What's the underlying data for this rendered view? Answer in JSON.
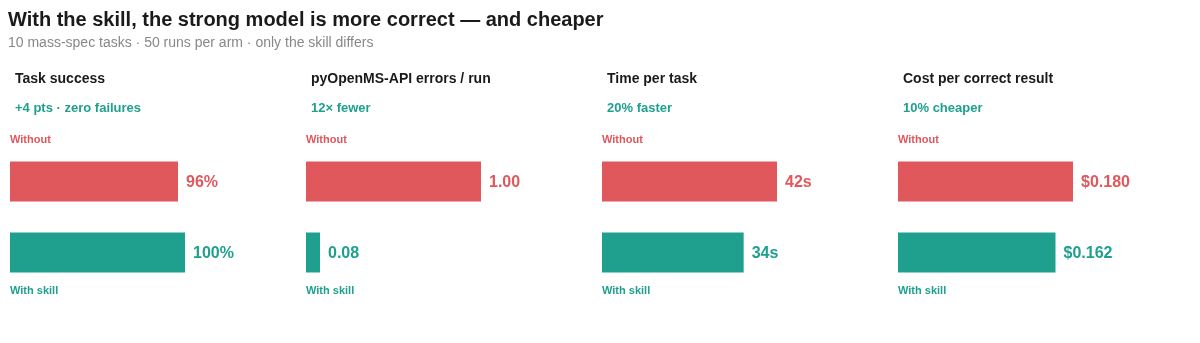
{
  "chart_data": [
    {
      "type": "bar",
      "orientation": "horizontal",
      "title": "Task success",
      "subtitle": "+4 pts · zero failures",
      "annotations": [
        "With the skill, the strong model is more correct — and cheaper",
        "10 mass-spec tasks · 50 runs per arm · only the skill differs"
      ],
      "categories": [
        "Without",
        "With skill"
      ],
      "values": [
        96,
        100
      ],
      "colors": [
        "#e0585c",
        "#1fa08f"
      ],
      "value_labels": [
        "96%",
        "100%"
      ]
    },
    {
      "type": "bar",
      "orientation": "horizontal",
      "title": "pyOpenMS-API errors / run",
      "subtitle": "12× fewer",
      "categories": [
        "Without",
        "With skill"
      ],
      "values": [
        1.0,
        0.08
      ],
      "colors": [
        "#e0585c",
        "#1fa08f"
      ],
      "value_labels": [
        "1.00",
        "0.08"
      ]
    },
    {
      "type": "bar",
      "orientation": "horizontal",
      "title": "Time per task",
      "subtitle": "20% faster",
      "categories": [
        "Without",
        "With skill"
      ],
      "values": [
        42,
        34
      ],
      "colors": [
        "#e0585c",
        "#1fa08f"
      ],
      "value_labels": [
        "42s",
        "34s"
      ]
    },
    {
      "type": "bar",
      "orientation": "horizontal",
      "title": "Cost per correct result",
      "subtitle": "10% cheaper",
      "categories": [
        "Without",
        "With skill"
      ],
      "values": [
        0.18,
        0.162
      ],
      "colors": [
        "#e0585c",
        "#1fa08f"
      ],
      "value_labels": [
        "$0.180",
        "$0.162"
      ]
    }
  ]
}
